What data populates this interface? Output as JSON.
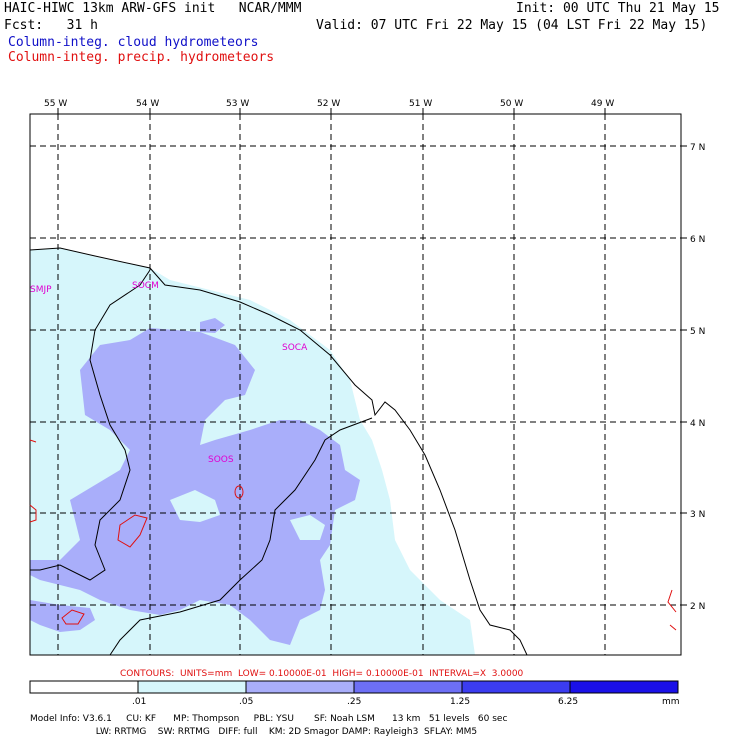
{
  "header": {
    "line1_left": "HAIC-HIWC 13km ARW-GFS init   NCAR/MMM",
    "line1_right": "Init: 00 UTC Thu 21 May 15",
    "line2_left": "Fcst:   31 h",
    "line2_right": "Valid: 07 UTC Fri 22 May 15 (04 LST Fri 22 May 15)",
    "field1": "Column-integ. cloud hydrometeors",
    "field2": "Column-integ. precip. hydrometeors"
  },
  "map": {
    "lon_labels": [
      "55 W",
      "54 W",
      "53 W",
      "52 W",
      "51 W",
      "50 W",
      "49 W"
    ],
    "lat_labels": [
      "7 N",
      "6 N",
      "5 N",
      "4 N",
      "3 N",
      "2 N"
    ],
    "stations": [
      "SMJP",
      "SOCM",
      "SOCA",
      "SOOS"
    ],
    "colors": {
      "fill_light": "#d6f6fb",
      "fill_mid": "#a9aefa",
      "coast": "#000000",
      "precip": "#e01010",
      "station": "#e000d0"
    }
  },
  "contours_line": "CONTOURS:  UNITS=mm  LOW= 0.10000E-01  HIGH= 0.10000E-01  INTERVAL=X  3.0000",
  "colorbar": {
    "ticks": [
      ".01",
      ".05",
      ".25",
      "1.25",
      "6.25"
    ],
    "unit": "mm",
    "colors": [
      "#ffffff",
      "#d6f6fb",
      "#a9aefa",
      "#6d6ff5",
      "#3b3cf0",
      "#1a10e8"
    ]
  },
  "footer": {
    "line1": "Model Info: V3.6.1     CU: KF      MP: Thompson     PBL: YSU       SF: Noah LSM      13 km   51 levels   60 sec",
    "line2": "                       LW: RRTMG    SW: RRTMG   DIFF: full    KM: 2D Smagor DAMP: Rayleigh3  SFLAY: MM5"
  }
}
